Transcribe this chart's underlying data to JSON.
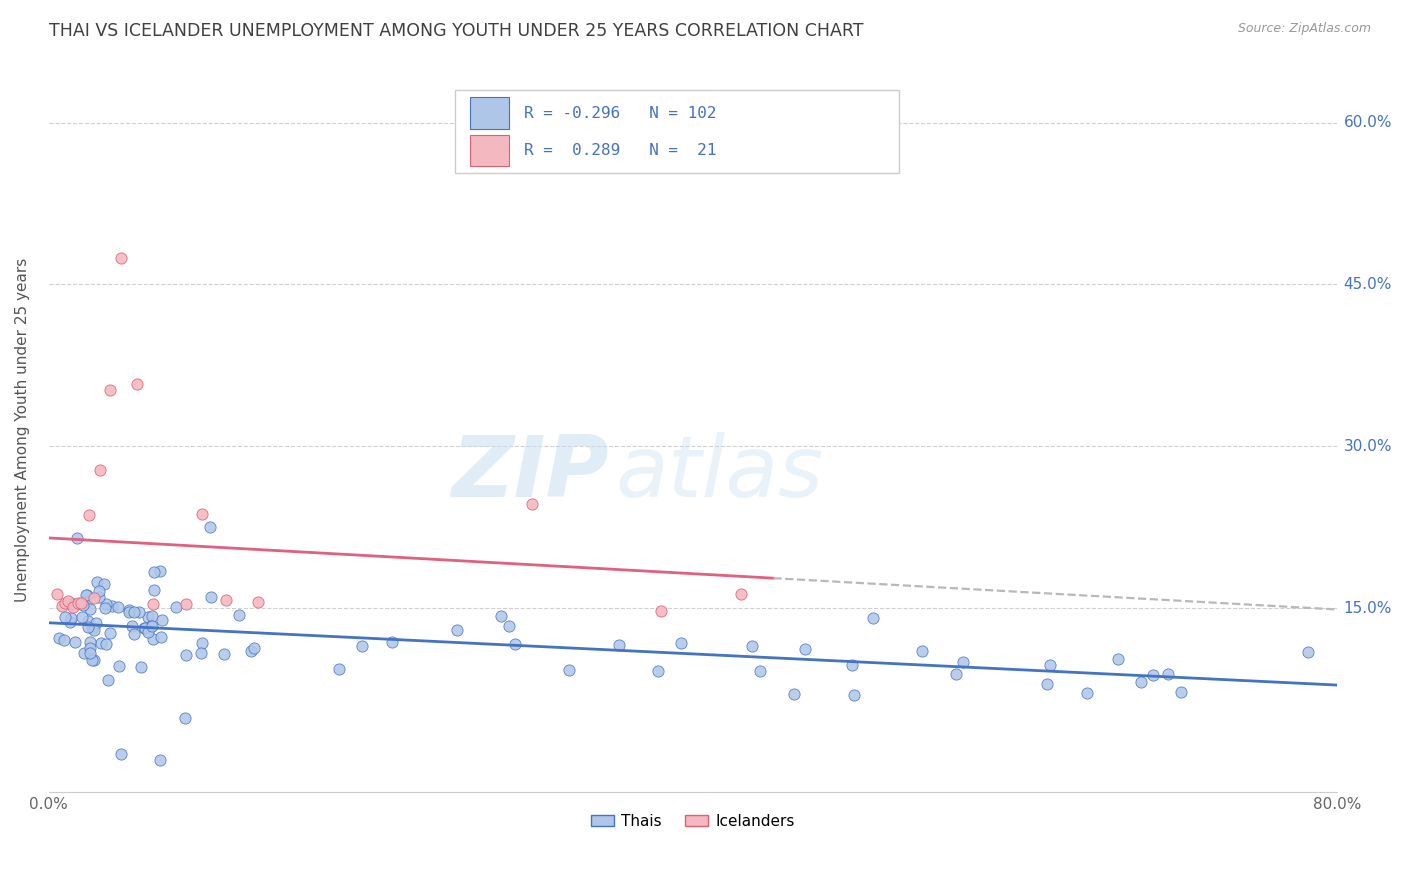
{
  "title": "THAI VS ICELANDER UNEMPLOYMENT AMONG YOUTH UNDER 25 YEARS CORRELATION CHART",
  "source": "Source: ZipAtlas.com",
  "ylabel": "Unemployment Among Youth under 25 years",
  "xlim": [
    0.0,
    0.8
  ],
  "ylim": [
    -0.02,
    0.65
  ],
  "x_ticks": [
    0.0,
    0.1,
    0.2,
    0.3,
    0.4,
    0.5,
    0.6,
    0.7,
    0.8
  ],
  "x_tick_labels": [
    "0.0%",
    "",
    "",
    "",
    "",
    "",
    "",
    "",
    "80.0%"
  ],
  "y_ticks": [
    0.15,
    0.3,
    0.45,
    0.6
  ],
  "y_tick_labels": [
    "15.0%",
    "30.0%",
    "45.0%",
    "60.0%"
  ],
  "thai_color": "#aec6e8",
  "thai_edge_color": "#4472c4",
  "icelander_color": "#f4b8c1",
  "icelander_edge_color": "#e06070",
  "thai_line_color": "#4472c4",
  "icelander_line_color": "#e06080",
  "n_thai": 102,
  "n_icelander": 21,
  "watermark_zip": "ZIP",
  "watermark_atlas": "atlas",
  "background_color": "#ffffff",
  "grid_color": "#cccccc",
  "title_color": "#404040",
  "label_color": "#4472c4"
}
